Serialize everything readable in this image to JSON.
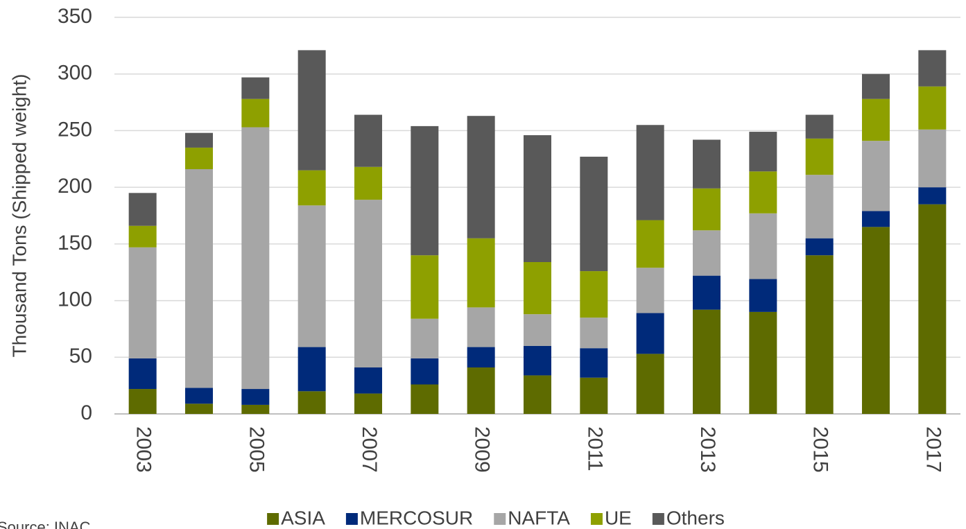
{
  "chart_data": {
    "type": "stacked_bar",
    "y_label": "Thousand  Tons (Shipped weight)",
    "source": "Source: INAC",
    "categories": [
      "2003",
      null,
      "2005",
      null,
      "2007",
      null,
      "2009",
      null,
      "2011",
      null,
      "2013",
      null,
      "2015",
      null,
      "2017"
    ],
    "series": [
      {
        "name": "ASIA",
        "color": "#5e6b00",
        "values": [
          22,
          9,
          8,
          20,
          18,
          26,
          41,
          34,
          32,
          53,
          92,
          90,
          140,
          165,
          185
        ]
      },
      {
        "name": "MERCOSUR",
        "color": "#002a7a",
        "values": [
          27,
          14,
          14,
          39,
          23,
          23,
          18,
          26,
          26,
          36,
          30,
          29,
          15,
          14,
          15
        ]
      },
      {
        "name": "NAFTA",
        "color": "#a6a6a6",
        "values": [
          98,
          193,
          231,
          125,
          148,
          35,
          35,
          28,
          27,
          40,
          40,
          58,
          56,
          62,
          51
        ]
      },
      {
        "name": "UE",
        "color": "#8ea000",
        "values": [
          19,
          19,
          25,
          31,
          29,
          56,
          61,
          46,
          41,
          42,
          37,
          37,
          32,
          37,
          38
        ]
      },
      {
        "name": "Others",
        "color": "#595959",
        "values": [
          29,
          13,
          19,
          106,
          46,
          114,
          108,
          112,
          101,
          84,
          43,
          35,
          21,
          22,
          32
        ]
      }
    ],
    "ylim": [
      0,
      350
    ],
    "yticks": [
      0,
      50,
      100,
      150,
      200,
      250,
      300,
      350
    ],
    "grid": true
  }
}
